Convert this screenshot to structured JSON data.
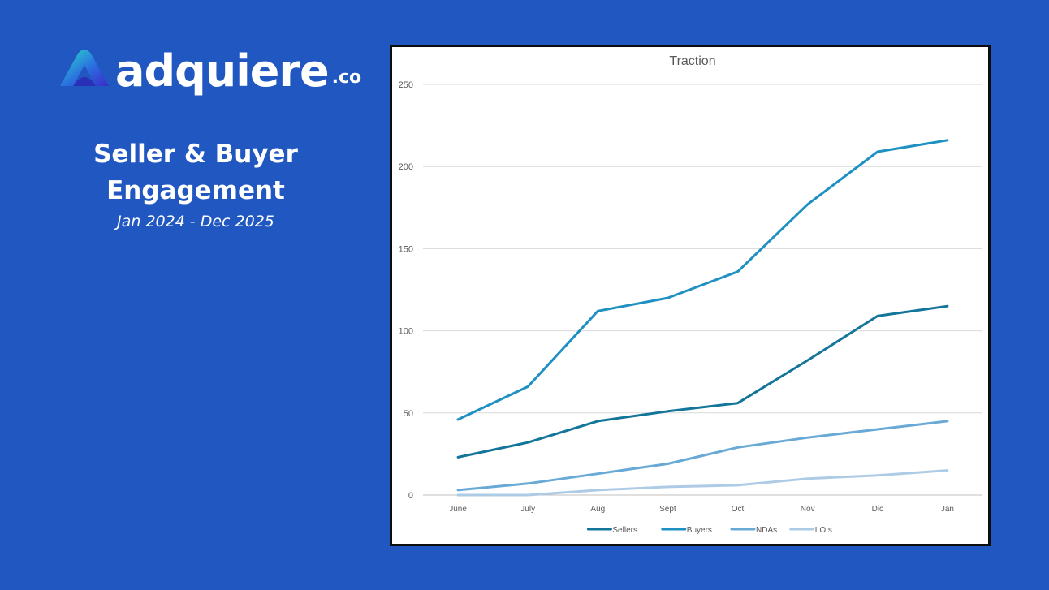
{
  "brand": {
    "name": "adquiere",
    "suffix": ".co"
  },
  "headline": {
    "line1": "Seller & Buyer",
    "line2": "Engagement",
    "date_range": "Jan 2024 - Dec 2025"
  },
  "colors": {
    "background": "#2157c0",
    "text": "#ffffff",
    "chart_frame": "#0d0d0d"
  },
  "chart_data": {
    "type": "line",
    "title": "Traction",
    "xlabel": "",
    "ylabel": "",
    "categories": [
      "June",
      "July",
      "Aug",
      "Sept",
      "Oct",
      "Nov",
      "Dic",
      "Jan"
    ],
    "ylim": [
      0,
      250
    ],
    "yticks": [
      0,
      50,
      100,
      150,
      200,
      250
    ],
    "grid": true,
    "legend_position": "bottom",
    "series": [
      {
        "name": "Sellers",
        "color": "#13759a",
        "values": [
          23,
          32,
          45,
          51,
          56,
          82,
          109,
          115
        ]
      },
      {
        "name": "Buyers",
        "color": "#1e90c2",
        "values": [
          46,
          66,
          112,
          120,
          136,
          177,
          209,
          216
        ]
      },
      {
        "name": "NDAs",
        "color": "#68a9d6",
        "values": [
          3,
          7,
          13,
          19,
          29,
          35,
          40,
          45
        ]
      },
      {
        "name": "LOIs",
        "color": "#aecbe6",
        "values": [
          0,
          0,
          3,
          5,
          6,
          10,
          12,
          15
        ]
      }
    ]
  }
}
